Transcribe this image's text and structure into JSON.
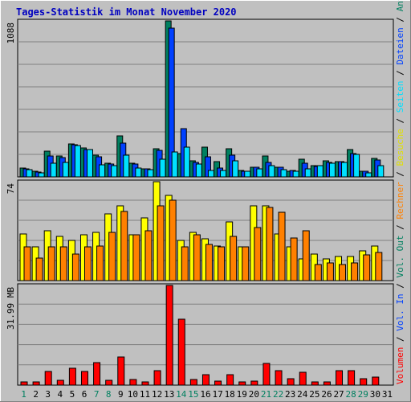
{
  "chart_data": [
    {
      "type": "bar",
      "title": "Tages-Statistik im Monat November 2020",
      "ylabel": "1088",
      "ylim": [
        0,
        1088
      ],
      "right_axis_label": [
        "Anfragen",
        "Dateien",
        "Seiten"
      ],
      "categories": [
        "1",
        "2",
        "3",
        "4",
        "5",
        "6",
        "7",
        "8",
        "9",
        "10",
        "11",
        "12",
        "13",
        "14",
        "15",
        "16",
        "17",
        "18",
        "19",
        "20",
        "21",
        "22",
        "23",
        "24",
        "25",
        "26",
        "27",
        "28",
        "29",
        "30",
        "31"
      ],
      "weekend_days": [
        "1",
        "7",
        "8",
        "14",
        "15",
        "21",
        "22",
        "28",
        "29"
      ],
      "series": [
        {
          "name": "Anfragen",
          "color": "#008060",
          "values": [
            62,
            40,
            180,
            148,
            230,
            200,
            150,
            95,
            285,
            95,
            58,
            195,
            1088,
            160,
            110,
            205,
            105,
            195,
            45,
            65,
            145,
            70,
            42,
            125,
            80,
            110,
            108,
            190,
            40,
            130,
            0
          ]
        },
        {
          "name": "Dateien",
          "color": "#0040ff",
          "values": [
            55,
            35,
            145,
            135,
            225,
            190,
            140,
            90,
            235,
            88,
            55,
            185,
            1040,
            335,
            100,
            140,
            62,
            150,
            38,
            70,
            100,
            68,
            45,
            95,
            75,
            100,
            105,
            165,
            38,
            115,
            0
          ]
        },
        {
          "name": "Seiten",
          "color": "#00e0ff",
          "values": [
            48,
            30,
            95,
            100,
            220,
            190,
            85,
            78,
            150,
            62,
            48,
            125,
            175,
            210,
            92,
            45,
            45,
            110,
            38,
            58,
            80,
            48,
            38,
            58,
            78,
            98,
            100,
            155,
            30,
            80,
            0
          ]
        }
      ]
    },
    {
      "type": "bar",
      "ylabel": "74",
      "ylim": [
        0,
        74
      ],
      "right_axis_label": [
        "Besuche",
        "Rechner"
      ],
      "categories": [
        "1",
        "2",
        "3",
        "4",
        "5",
        "6",
        "7",
        "8",
        "9",
        "10",
        "11",
        "12",
        "13",
        "14",
        "15",
        "16",
        "17",
        "18",
        "19",
        "20",
        "21",
        "22",
        "23",
        "24",
        "25",
        "26",
        "27",
        "28",
        "29",
        "30",
        "31"
      ],
      "series": [
        {
          "name": "Besuche",
          "color": "#ffff00",
          "values": [
            35,
            25,
            37,
            33,
            30,
            34,
            36,
            50,
            56,
            34,
            47,
            74,
            64,
            30,
            36,
            31,
            26,
            44,
            25,
            56,
            56,
            35,
            25,
            16,
            20,
            16,
            18,
            18,
            22,
            26,
            0
          ]
        },
        {
          "name": "Rechner",
          "color": "#ff8000",
          "values": [
            25,
            17,
            25,
            25,
            20,
            25,
            26,
            36,
            52,
            34,
            37,
            56,
            60,
            25,
            34,
            27,
            25,
            33,
            25,
            40,
            55,
            51,
            32,
            37,
            12,
            13,
            12,
            13,
            19,
            21,
            0
          ]
        }
      ]
    },
    {
      "type": "bar",
      "ylabel": "31.99 MB",
      "ylim": [
        0,
        31.99
      ],
      "right_axis_label": [
        "Volumen",
        "Vol. In",
        "Vol. Out"
      ],
      "categories": [
        "1",
        "2",
        "3",
        "4",
        "5",
        "6",
        "7",
        "8",
        "9",
        "10",
        "11",
        "12",
        "13",
        "14",
        "15",
        "16",
        "17",
        "18",
        "19",
        "20",
        "21",
        "22",
        "23",
        "24",
        "25",
        "26",
        "27",
        "28",
        "29",
        "30",
        "31"
      ],
      "series": [
        {
          "name": "Volumen",
          "color": "#ff0000",
          "values": [
            1.0,
            1.0,
            4.3,
            1.6,
            5.5,
            4.5,
            7.3,
            1.6,
            9.1,
            1.8,
            1.0,
            4.6,
            32.0,
            21.2,
            1.8,
            3.3,
            1.3,
            3.3,
            1.0,
            1.3,
            7.0,
            4.6,
            2.0,
            4.1,
            1.0,
            1.0,
            4.6,
            4.6,
            2.0,
            2.5,
            0
          ]
        }
      ]
    }
  ]
}
